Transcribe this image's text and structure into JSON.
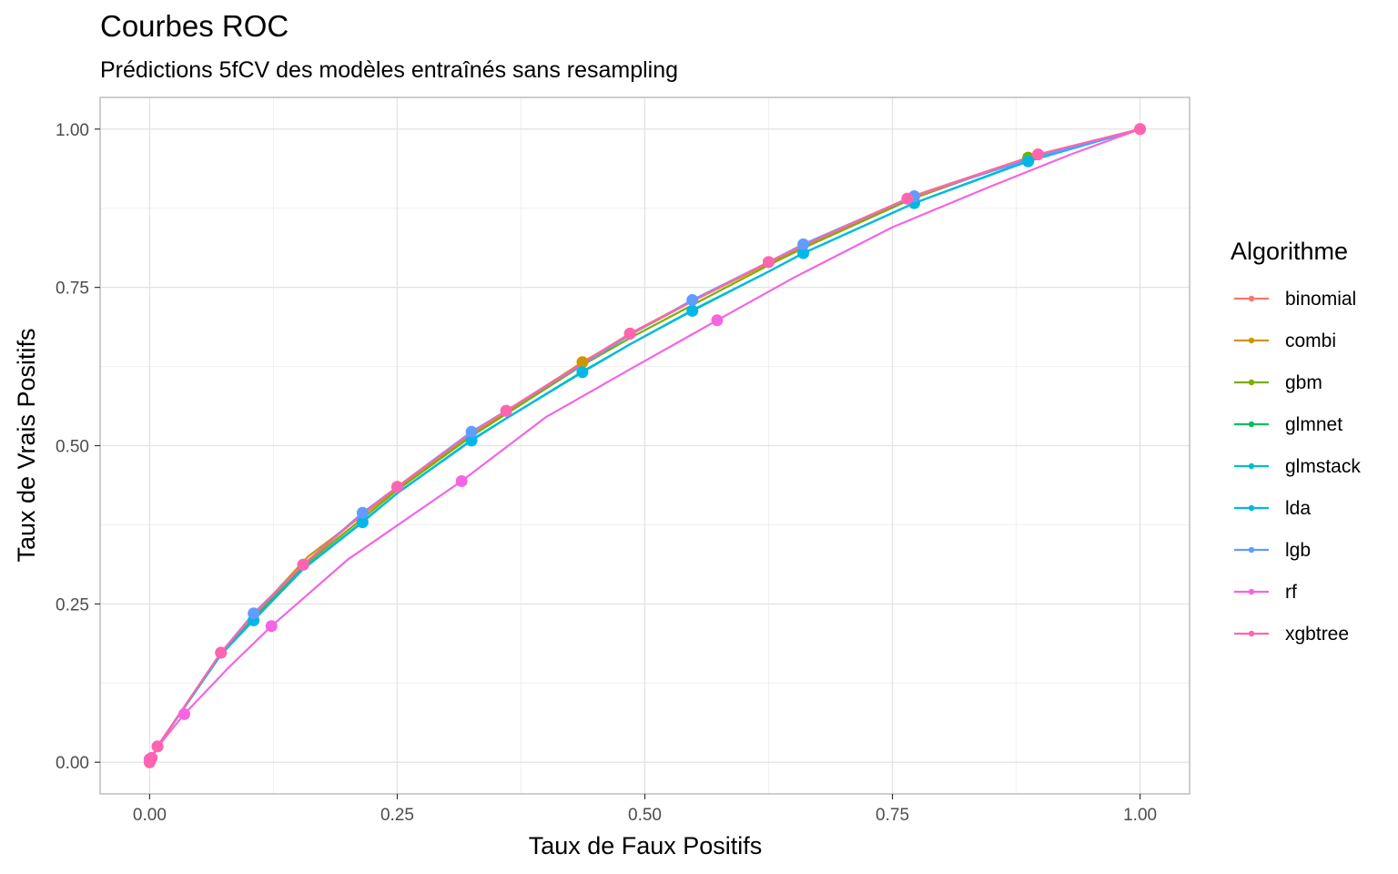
{
  "chart_data": {
    "type": "line",
    "title": "Courbes ROC",
    "subtitle": "Prédictions 5fCV des modèles entraînés sans resampling",
    "xlabel": "Taux de Faux Positifs",
    "ylabel": "Taux de Vrais Positifs",
    "xlim": [
      -0.05,
      1.05
    ],
    "ylim": [
      -0.05,
      1.05
    ],
    "x_ticks": [
      0,
      0.25,
      0.5,
      0.75,
      1
    ],
    "x_tick_labels": [
      "0.00",
      "0.25",
      "0.50",
      "0.75",
      "1.00"
    ],
    "y_ticks": [
      0,
      0.25,
      0.5,
      0.75,
      1
    ],
    "y_tick_labels": [
      "0.00",
      "0.25",
      "0.50",
      "0.75",
      "1.00"
    ],
    "grid": true,
    "legend": {
      "title": "Algorithme",
      "position": "right"
    },
    "series": [
      {
        "name": "binomial",
        "color": "#F8766D",
        "points": [
          [
            0,
            0
          ],
          [
            0.008,
            0.025
          ],
          [
            0.072,
            0.173
          ],
          [
            0.105,
            0.235
          ],
          [
            0.155,
            0.312
          ],
          [
            0.215,
            0.393
          ],
          [
            0.25,
            0.435
          ],
          [
            0.325,
            0.521
          ],
          [
            0.36,
            0.555
          ],
          [
            0.437,
            0.631
          ],
          [
            0.485,
            0.677
          ],
          [
            0.548,
            0.729
          ],
          [
            0.625,
            0.79
          ],
          [
            0.66,
            0.818
          ],
          [
            0.765,
            0.89
          ],
          [
            0.772,
            0.895
          ],
          [
            0.887,
            0.955
          ],
          [
            0.897,
            0.96
          ],
          [
            1,
            1
          ]
        ],
        "markers": [
          [
            0,
            0
          ],
          [
            0.008,
            0.025
          ],
          [
            0.072,
            0.173
          ],
          [
            0.155,
            0.312
          ],
          [
            0.25,
            0.435
          ],
          [
            0.36,
            0.555
          ],
          [
            0.485,
            0.677
          ],
          [
            0.625,
            0.79
          ],
          [
            0.765,
            0.89
          ],
          [
            0.897,
            0.96
          ],
          [
            1,
            1
          ]
        ]
      },
      {
        "name": "combi",
        "color": "#CD9600",
        "points": [
          [
            0,
            0
          ],
          [
            0.008,
            0.025
          ],
          [
            0.072,
            0.173
          ],
          [
            0.105,
            0.232
          ],
          [
            0.16,
            0.325
          ],
          [
            0.215,
            0.39
          ],
          [
            0.25,
            0.433
          ],
          [
            0.325,
            0.518
          ],
          [
            0.36,
            0.553
          ],
          [
            0.437,
            0.632
          ],
          [
            0.485,
            0.675
          ],
          [
            0.548,
            0.728
          ],
          [
            0.625,
            0.788
          ],
          [
            0.66,
            0.815
          ],
          [
            0.77,
            0.893
          ],
          [
            0.887,
            0.953
          ],
          [
            1,
            1
          ]
        ],
        "markers": [
          [
            0.437,
            0.632
          ]
        ]
      },
      {
        "name": "gbm",
        "color": "#7CAE00",
        "points": [
          [
            0,
            0
          ],
          [
            0.008,
            0.025
          ],
          [
            0.072,
            0.172
          ],
          [
            0.105,
            0.23
          ],
          [
            0.155,
            0.31
          ],
          [
            0.215,
            0.385
          ],
          [
            0.25,
            0.43
          ],
          [
            0.325,
            0.515
          ],
          [
            0.36,
            0.55
          ],
          [
            0.437,
            0.627
          ],
          [
            0.485,
            0.67
          ],
          [
            0.548,
            0.722
          ],
          [
            0.625,
            0.785
          ],
          [
            0.66,
            0.812
          ],
          [
            0.77,
            0.89
          ],
          [
            0.887,
            0.955
          ],
          [
            1,
            1
          ]
        ],
        "markers": [
          [
            0.887,
            0.955
          ]
        ]
      },
      {
        "name": "glmnet",
        "color": "#00BE67",
        "points": [
          [
            0,
            0
          ],
          [
            0.008,
            0.025
          ],
          [
            0.072,
            0.17
          ],
          [
            0.105,
            0.226
          ],
          [
            0.155,
            0.306
          ],
          [
            0.215,
            0.38
          ],
          [
            0.25,
            0.425
          ],
          [
            0.325,
            0.509
          ],
          [
            0.36,
            0.543
          ],
          [
            0.437,
            0.617
          ],
          [
            0.485,
            0.66
          ],
          [
            0.548,
            0.714
          ],
          [
            0.625,
            0.775
          ],
          [
            0.66,
            0.804
          ],
          [
            0.772,
            0.883
          ],
          [
            0.887,
            0.95
          ],
          [
            1,
            1
          ]
        ],
        "markers": []
      },
      {
        "name": "glmstack",
        "color": "#00BFC4",
        "points": [
          [
            0,
            0
          ],
          [
            0.008,
            0.025
          ],
          [
            0.072,
            0.17
          ],
          [
            0.105,
            0.225
          ],
          [
            0.155,
            0.305
          ],
          [
            0.215,
            0.38
          ],
          [
            0.25,
            0.425
          ],
          [
            0.325,
            0.509
          ],
          [
            0.36,
            0.543
          ],
          [
            0.437,
            0.616
          ],
          [
            0.485,
            0.66
          ],
          [
            0.548,
            0.714
          ],
          [
            0.625,
            0.775
          ],
          [
            0.66,
            0.804
          ],
          [
            0.772,
            0.883
          ],
          [
            0.887,
            0.95
          ],
          [
            1,
            1
          ]
        ],
        "markers": []
      },
      {
        "name": "lda",
        "color": "#00B8E7",
        "points": [
          [
            0,
            0
          ],
          [
            0.008,
            0.025
          ],
          [
            0.072,
            0.17
          ],
          [
            0.105,
            0.224
          ],
          [
            0.155,
            0.305
          ],
          [
            0.215,
            0.379
          ],
          [
            0.25,
            0.425
          ],
          [
            0.325,
            0.508
          ],
          [
            0.36,
            0.543
          ],
          [
            0.437,
            0.616
          ],
          [
            0.485,
            0.66
          ],
          [
            0.548,
            0.713
          ],
          [
            0.625,
            0.775
          ],
          [
            0.66,
            0.804
          ],
          [
            0.772,
            0.883
          ],
          [
            0.887,
            0.949
          ],
          [
            1,
            1
          ]
        ],
        "markers": [
          [
            0.105,
            0.224
          ],
          [
            0.215,
            0.379
          ],
          [
            0.325,
            0.508
          ],
          [
            0.437,
            0.616
          ],
          [
            0.548,
            0.713
          ],
          [
            0.66,
            0.804
          ],
          [
            0.772,
            0.883
          ],
          [
            0.887,
            0.949
          ]
        ]
      },
      {
        "name": "lgb",
        "color": "#619CFF",
        "points": [
          [
            0,
            0
          ],
          [
            0.008,
            0.025
          ],
          [
            0.072,
            0.173
          ],
          [
            0.105,
            0.235
          ],
          [
            0.155,
            0.312
          ],
          [
            0.215,
            0.394
          ],
          [
            0.25,
            0.435
          ],
          [
            0.325,
            0.522
          ],
          [
            0.36,
            0.555
          ],
          [
            0.437,
            0.628
          ],
          [
            0.485,
            0.675
          ],
          [
            0.548,
            0.73
          ],
          [
            0.625,
            0.79
          ],
          [
            0.66,
            0.818
          ],
          [
            0.772,
            0.894
          ],
          [
            0.887,
            0.952
          ],
          [
            1,
            1
          ]
        ],
        "markers": [
          [
            0.105,
            0.235
          ],
          [
            0.215,
            0.394
          ],
          [
            0.325,
            0.522
          ],
          [
            0.548,
            0.73
          ],
          [
            0.66,
            0.818
          ],
          [
            0.772,
            0.894
          ]
        ]
      },
      {
        "name": "rf",
        "color": "#F564E3",
        "points": [
          [
            0,
            0
          ],
          [
            0.008,
            0.024
          ],
          [
            0.035,
            0.076
          ],
          [
            0.08,
            0.15
          ],
          [
            0.123,
            0.215
          ],
          [
            0.2,
            0.32
          ],
          [
            0.315,
            0.444
          ],
          [
            0.4,
            0.545
          ],
          [
            0.49,
            0.625
          ],
          [
            0.573,
            0.698
          ],
          [
            0.65,
            0.765
          ],
          [
            0.75,
            0.845
          ],
          [
            0.85,
            0.91
          ],
          [
            0.93,
            0.96
          ],
          [
            1,
            1
          ]
        ],
        "markers": [
          [
            0,
            0.005
          ],
          [
            0.035,
            0.076
          ],
          [
            0.123,
            0.215
          ],
          [
            0.315,
            0.444
          ],
          [
            0.573,
            0.698
          ]
        ]
      },
      {
        "name": "xgbtree",
        "color": "#FF64B0",
        "points": [
          [
            0,
            0
          ],
          [
            0.008,
            0.025
          ],
          [
            0.072,
            0.173
          ],
          [
            0.105,
            0.233
          ],
          [
            0.155,
            0.312
          ],
          [
            0.215,
            0.392
          ],
          [
            0.25,
            0.435
          ],
          [
            0.325,
            0.52
          ],
          [
            0.36,
            0.555
          ],
          [
            0.437,
            0.63
          ],
          [
            0.485,
            0.677
          ],
          [
            0.548,
            0.728
          ],
          [
            0.625,
            0.79
          ],
          [
            0.66,
            0.816
          ],
          [
            0.765,
            0.89
          ],
          [
            0.897,
            0.96
          ],
          [
            1,
            1
          ]
        ],
        "markers": [
          [
            0,
            0
          ],
          [
            0.002,
            0.007
          ],
          [
            0.008,
            0.025
          ],
          [
            0.072,
            0.173
          ],
          [
            0.155,
            0.312
          ],
          [
            0.25,
            0.435
          ],
          [
            0.36,
            0.555
          ],
          [
            0.485,
            0.677
          ],
          [
            0.625,
            0.79
          ],
          [
            0.765,
            0.89
          ],
          [
            0.897,
            0.96
          ],
          [
            1,
            1
          ]
        ]
      }
    ]
  }
}
